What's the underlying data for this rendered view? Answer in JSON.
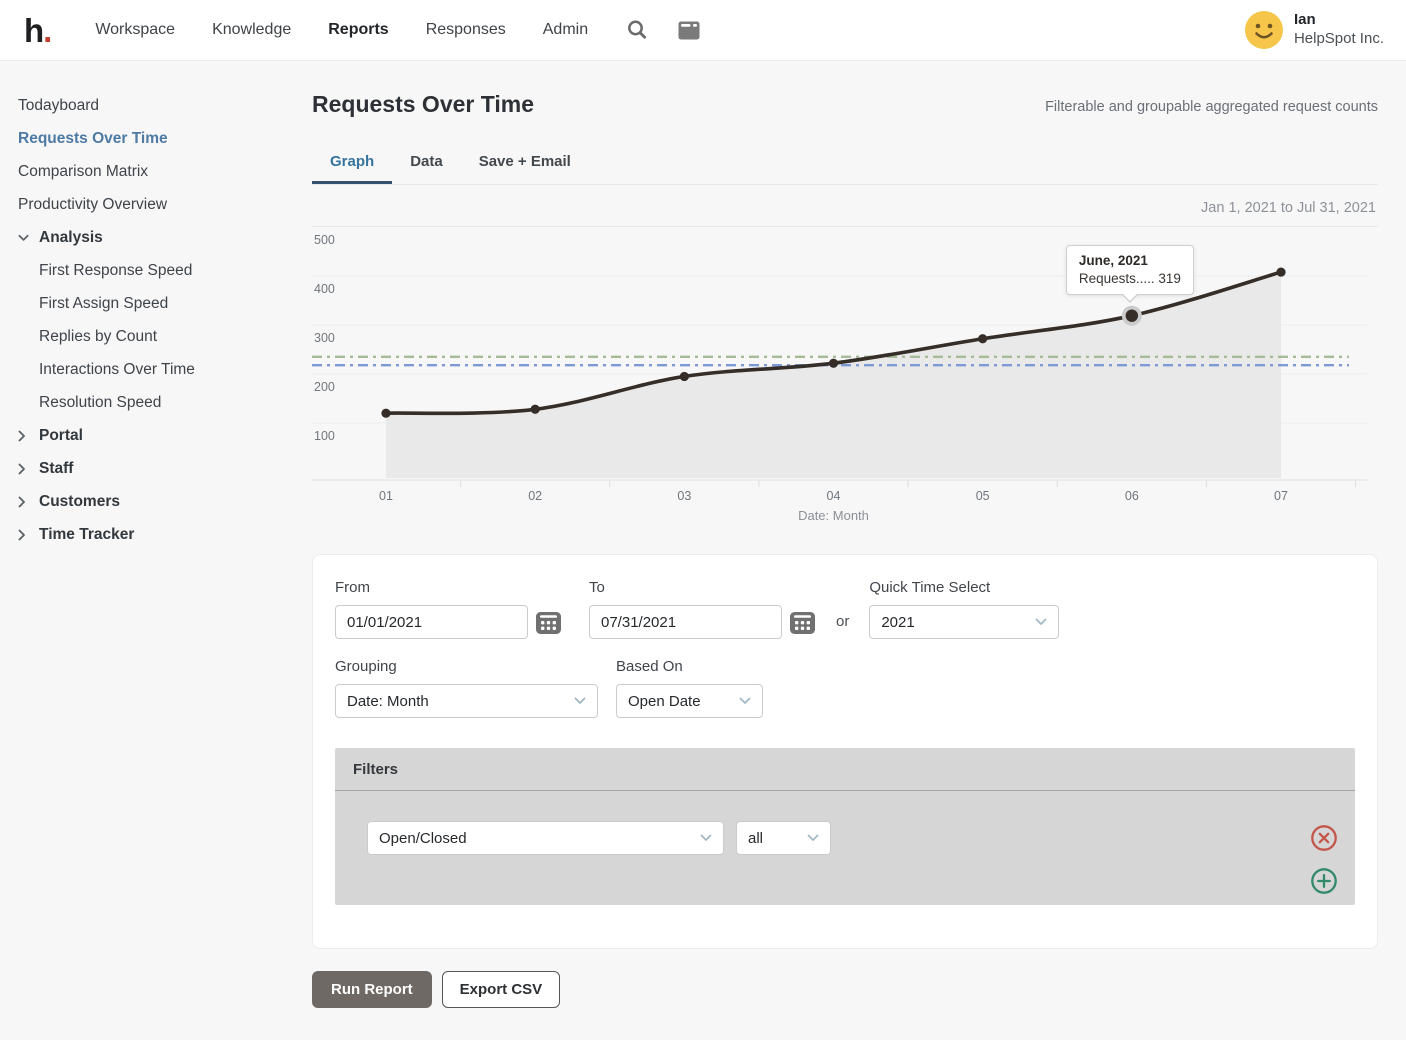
{
  "nav": {
    "logo_text": "h",
    "logo_dot": ".",
    "items": [
      {
        "label": "Workspace",
        "active": false
      },
      {
        "label": "Knowledge",
        "active": false
      },
      {
        "label": "Reports",
        "active": true
      },
      {
        "label": "Responses",
        "active": false
      },
      {
        "label": "Admin",
        "active": false
      }
    ],
    "user": {
      "name": "Ian",
      "company": "HelpSpot Inc."
    }
  },
  "sidebar": {
    "items": [
      {
        "label": "Todayboard",
        "type": "link",
        "active": false
      },
      {
        "label": "Requests Over Time",
        "type": "link",
        "active": true
      },
      {
        "label": "Comparison Matrix",
        "type": "link",
        "active": false
      },
      {
        "label": "Productivity Overview",
        "type": "link",
        "active": false
      },
      {
        "label": "Analysis",
        "type": "section",
        "expanded": true,
        "children": [
          "First Response Speed",
          "First Assign Speed",
          "Replies by Count",
          "Interactions Over Time",
          "Resolution Speed"
        ]
      },
      {
        "label": "Portal",
        "type": "section",
        "expanded": false
      },
      {
        "label": "Staff",
        "type": "section",
        "expanded": false
      },
      {
        "label": "Customers",
        "type": "section",
        "expanded": false
      },
      {
        "label": "Time Tracker",
        "type": "section",
        "expanded": false
      }
    ]
  },
  "report": {
    "title": "Requests Over Time",
    "subtitle": "Filterable and groupable aggregated request counts",
    "tabs": [
      {
        "label": "Graph",
        "active": true
      },
      {
        "label": "Data",
        "active": false
      },
      {
        "label": "Save + Email",
        "active": false
      }
    ],
    "date_range": "Jan 1, 2021 to Jul 31, 2021"
  },
  "chart_data": {
    "type": "area",
    "x": [
      "01",
      "02",
      "03",
      "04",
      "05",
      "06",
      "07"
    ],
    "series": [
      {
        "name": "Requests",
        "values": [
          120,
          128,
          195,
          222,
          272,
          319,
          408
        ]
      }
    ],
    "xlabel": "Date: Month",
    "ylabel": "",
    "ylim": [
      0,
      500
    ],
    "yticks": [
      100,
      200,
      300,
      400,
      500
    ],
    "grid": true,
    "legend": false,
    "line_color": "#352d27",
    "fill_color": "#e9e9e9",
    "reference_lines": [
      {
        "value": 235,
        "color": "#a6bb97",
        "style": "dash-dot"
      },
      {
        "value": 218,
        "color": "#7d99d6",
        "style": "dash-dot"
      }
    ],
    "tooltip": {
      "point_index": 5,
      "title": "June, 2021",
      "text": "Requests..... 319"
    }
  },
  "form": {
    "from": {
      "label": "From",
      "value": "01/01/2021"
    },
    "to": {
      "label": "To",
      "value": "07/31/2021"
    },
    "or_text": "or",
    "quick_time": {
      "label": "Quick Time Select",
      "value": "2021"
    },
    "grouping": {
      "label": "Grouping",
      "value": "Date: Month"
    },
    "based_on": {
      "label": "Based On",
      "value": "Open Date"
    }
  },
  "filters": {
    "title": "Filters",
    "rows": [
      {
        "field": "Open/Closed",
        "operator": "all"
      }
    ]
  },
  "actions": {
    "run_report": "Run Report",
    "export_csv": "Export CSV"
  },
  "icons": {
    "search": "magnifier",
    "workspace_window": "app-window",
    "calendar": "calendar-grid",
    "chevron_down": "chevron-down",
    "chevron_right": "chevron-right",
    "remove_filter": "circle-x",
    "add_filter": "circle-plus",
    "avatar": "smiley-face"
  },
  "colors": {
    "logo_dot": "#c5402f",
    "sidebar_active": "#4e7aa3",
    "tab_active_text": "#37749c",
    "tab_underline": "#36536d",
    "line": "#352d27",
    "area_fill": "#e9e9e9",
    "ref_green": "#a6bb97",
    "ref_blue": "#7d99d6",
    "remove_icon": "#c4554a",
    "add_icon": "#318a69",
    "avatar_yellow": "#f6c64a",
    "run_button": "#6e6965"
  }
}
